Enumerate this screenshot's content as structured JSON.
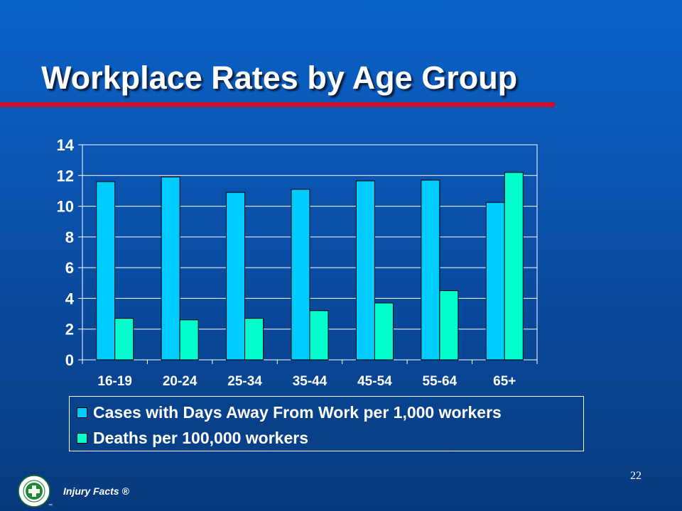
{
  "title": "Workplace Rates by Age Group",
  "footer": {
    "text": "Injury Facts ®",
    "page_number": "22",
    "logo": {
      "icon": "green-cross-seal-icon",
      "ring_text": "NATIONAL SAFETY COUNCIL",
      "trademark": "™"
    }
  },
  "colors": {
    "background": "#0a4fa8",
    "title_rule": "#c8102e",
    "series_cases": "#00ccff",
    "series_deaths": "#00ffcc"
  },
  "chart_data": {
    "type": "bar",
    "categories": [
      "16-19",
      "20-24",
      "25-34",
      "35-44",
      "45-54",
      "55-64",
      "65+"
    ],
    "series": [
      {
        "name": "Cases with Days Away From Work per 1,000 workers",
        "values": [
          11.6,
          11.9,
          10.9,
          11.1,
          11.65,
          11.7,
          10.25
        ]
      },
      {
        "name": "Deaths per 100,000 workers",
        "values": [
          2.7,
          2.6,
          2.7,
          3.2,
          3.7,
          4.5,
          12.2
        ]
      }
    ],
    "ylim": [
      0,
      14
    ],
    "yticks": [
      "0",
      "2",
      "4",
      "6",
      "8",
      "10",
      "12",
      "14"
    ],
    "grid": true,
    "legend_position": "bottom"
  }
}
